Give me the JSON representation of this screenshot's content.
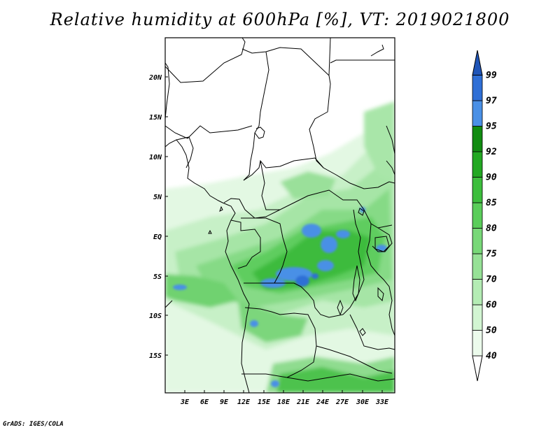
{
  "title": "Relative humidity at 600hPa [%], VT: 2019021800",
  "credit": "GrADS: IGES/COLA",
  "map": {
    "variable": "Relative humidity",
    "level": "600hPa",
    "units": "%",
    "valid_time": "2019021800",
    "lat_labels": [
      "20N",
      "15N",
      "10N",
      "5N",
      "EQ",
      "5S",
      "10S",
      "15S"
    ],
    "lon_labels": [
      "3E",
      "6E",
      "9E",
      "12E",
      "15E",
      "18E",
      "21E",
      "24E",
      "27E",
      "30E",
      "33E"
    ]
  },
  "colorbar": {
    "levels": [
      "40",
      "50",
      "60",
      "70",
      "75",
      "80",
      "85",
      "90",
      "92",
      "95",
      "97",
      "99"
    ],
    "colors": [
      "#ffffff",
      "#e6fbe6",
      "#c7f2c7",
      "#a8e8a8",
      "#8ddd8d",
      "#6cd36c",
      "#4ec74e",
      "#32b532",
      "#1f9f1f",
      "#118c11",
      "#4a90e6",
      "#2f6fd6",
      "#1f55b8"
    ]
  }
}
